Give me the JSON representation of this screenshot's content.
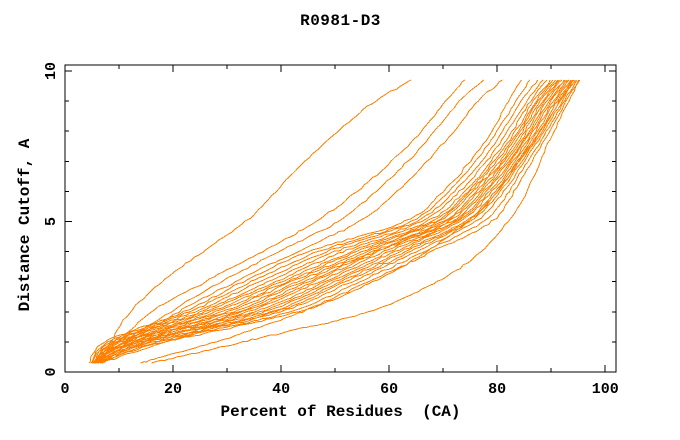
{
  "window": {
    "background": "#FFFFFF"
  },
  "chart_data": {
    "type": "line",
    "title": "R0981-D3",
    "xlabel": "Percent of Residues  (CA)",
    "ylabel": "Distance Cutoff, A",
    "xlim": [
      0,
      102
    ],
    "ylim": [
      0,
      10.2
    ],
    "x_major_ticks": [
      0,
      20,
      40,
      60,
      80,
      100
    ],
    "x_minor_ticks": [
      10,
      30,
      50,
      70,
      90
    ],
    "y_major_ticks": [
      0,
      5,
      10
    ],
    "y_minor_ticks": [
      1,
      2,
      3,
      4,
      6,
      7,
      8,
      9
    ],
    "grid": false,
    "legend": "none",
    "curve_color": "#FF8000",
    "axis_color": "#000000",
    "y_levels": [
      0.3,
      1,
      2,
      3,
      4,
      5,
      6,
      7,
      8,
      9,
      9.7
    ],
    "series": [
      {
        "x_at_y": [
          5.0,
          8.5,
          12.0,
          18.0,
          25.5,
          33.5,
          39.0,
          44.5,
          50.5,
          57.5,
          64.0
        ]
      },
      {
        "x_at_y": [
          5.5,
          10.0,
          16.0,
          26.0,
          36.5,
          46.5,
          54.0,
          60.5,
          66.0,
          70.5,
          74.0
        ]
      },
      {
        "x_at_y": [
          5.5,
          11.0,
          19.5,
          29.0,
          39.5,
          50.5,
          57.5,
          63.5,
          68.5,
          73.0,
          77.5
        ]
      },
      {
        "x_at_y": [
          6.0,
          12.0,
          21.0,
          31.5,
          43.0,
          54.5,
          61.5,
          67.0,
          72.0,
          76.5,
          81.0
        ]
      },
      {
        "x_at_y": [
          4.5,
          7.5,
          22.0,
          33.0,
          45.0,
          63.0,
          70.0,
          75.0,
          79.0,
          82.0,
          84.5
        ]
      },
      {
        "x_at_y": [
          5.0,
          8.0,
          23.0,
          34.5,
          47.0,
          64.0,
          71.0,
          76.0,
          80.0,
          83.5,
          86.0
        ]
      },
      {
        "x_at_y": [
          5.5,
          8.5,
          24.0,
          36.0,
          48.5,
          65.0,
          72.0,
          77.0,
          81.0,
          84.5,
          87.5
        ]
      },
      {
        "x_at_y": [
          4.8,
          9.0,
          25.0,
          37.5,
          50.0,
          66.0,
          73.0,
          78.0,
          82.0,
          85.5,
          88.5
        ]
      },
      {
        "x_at_y": [
          5.2,
          9.5,
          26.0,
          39.0,
          51.5,
          67.0,
          74.0,
          78.8,
          82.8,
          86.2,
          89.2
        ]
      },
      {
        "x_at_y": [
          5.8,
          10.0,
          27.0,
          40.0,
          53.0,
          68.0,
          74.6,
          79.4,
          83.4,
          86.8,
          89.8
        ]
      },
      {
        "x_at_y": [
          5.0,
          10.5,
          28.0,
          41.0,
          54.0,
          68.5,
          75.1,
          79.9,
          83.9,
          87.2,
          90.3
        ]
      },
      {
        "x_at_y": [
          5.4,
          11.0,
          29.0,
          42.0,
          55.0,
          69.0,
          75.6,
          80.4,
          84.3,
          87.6,
          90.8
        ]
      },
      {
        "x_at_y": [
          6.0,
          11.5,
          30.0,
          43.0,
          56.0,
          70.0,
          76.1,
          80.9,
          84.7,
          88.0,
          91.2
        ]
      },
      {
        "x_at_y": [
          5.2,
          12.0,
          31.0,
          44.0,
          57.0,
          70.5,
          76.6,
          81.3,
          85.1,
          88.4,
          91.6
        ]
      },
      {
        "x_at_y": [
          5.6,
          12.5,
          32.0,
          45.0,
          57.5,
          71.0,
          77.1,
          81.7,
          85.5,
          88.8,
          92.0
        ]
      },
      {
        "x_at_y": [
          4.7,
          13.0,
          33.0,
          46.0,
          58.0,
          71.5,
          77.6,
          82.1,
          85.9,
          89.2,
          92.4
        ]
      },
      {
        "x_at_y": [
          5.9,
          13.5,
          34.0,
          47.0,
          59.0,
          72.0,
          78.1,
          82.5,
          86.3,
          89.6,
          92.7
        ]
      },
      {
        "x_at_y": [
          5.1,
          14.0,
          35.0,
          48.0,
          60.0,
          72.5,
          78.6,
          82.9,
          86.7,
          90.0,
          93.0
        ]
      },
      {
        "x_at_y": [
          5.5,
          14.5,
          36.0,
          49.0,
          61.0,
          73.0,
          79.1,
          83.3,
          87.1,
          90.4,
          93.3
        ]
      },
      {
        "x_at_y": [
          6.2,
          15.2,
          37.0,
          50.0,
          62.0,
          74.0,
          79.6,
          83.7,
          87.5,
          90.8,
          93.6
        ]
      },
      {
        "x_at_y": [
          5.3,
          15.8,
          38.0,
          51.0,
          63.0,
          74.5,
          80.1,
          84.1,
          87.9,
          91.2,
          93.9
        ]
      },
      {
        "x_at_y": [
          5.7,
          16.5,
          39.0,
          52.0,
          64.0,
          75.0,
          80.6,
          84.5,
          88.3,
          91.6,
          94.2
        ]
      },
      {
        "x_at_y": [
          6.5,
          17.2,
          40.0,
          53.0,
          65.0,
          76.0,
          81.3,
          85.0,
          88.7,
          92.0,
          94.5
        ]
      },
      {
        "x_at_y": [
          6.0,
          18.0,
          41.5,
          54.5,
          66.5,
          77.5,
          82.2,
          85.6,
          89.2,
          92.4,
          94.8
        ]
      },
      {
        "x_at_y": [
          6.8,
          19.0,
          43.0,
          56.0,
          68.0,
          79.0,
          83.2,
          86.4,
          89.8,
          92.8,
          95.1
        ]
      },
      {
        "x_at_y": [
          14.0,
          28.0,
          44.0,
          57.0,
          67.0,
          74.5,
          80.0,
          84.0,
          88.0,
          91.5,
          94.0
        ]
      },
      {
        "x_at_y": [
          16.0,
          33.0,
          56.0,
          69.0,
          77.0,
          82.0,
          85.5,
          88.0,
          90.5,
          93.2,
          95.3
        ]
      }
    ]
  }
}
